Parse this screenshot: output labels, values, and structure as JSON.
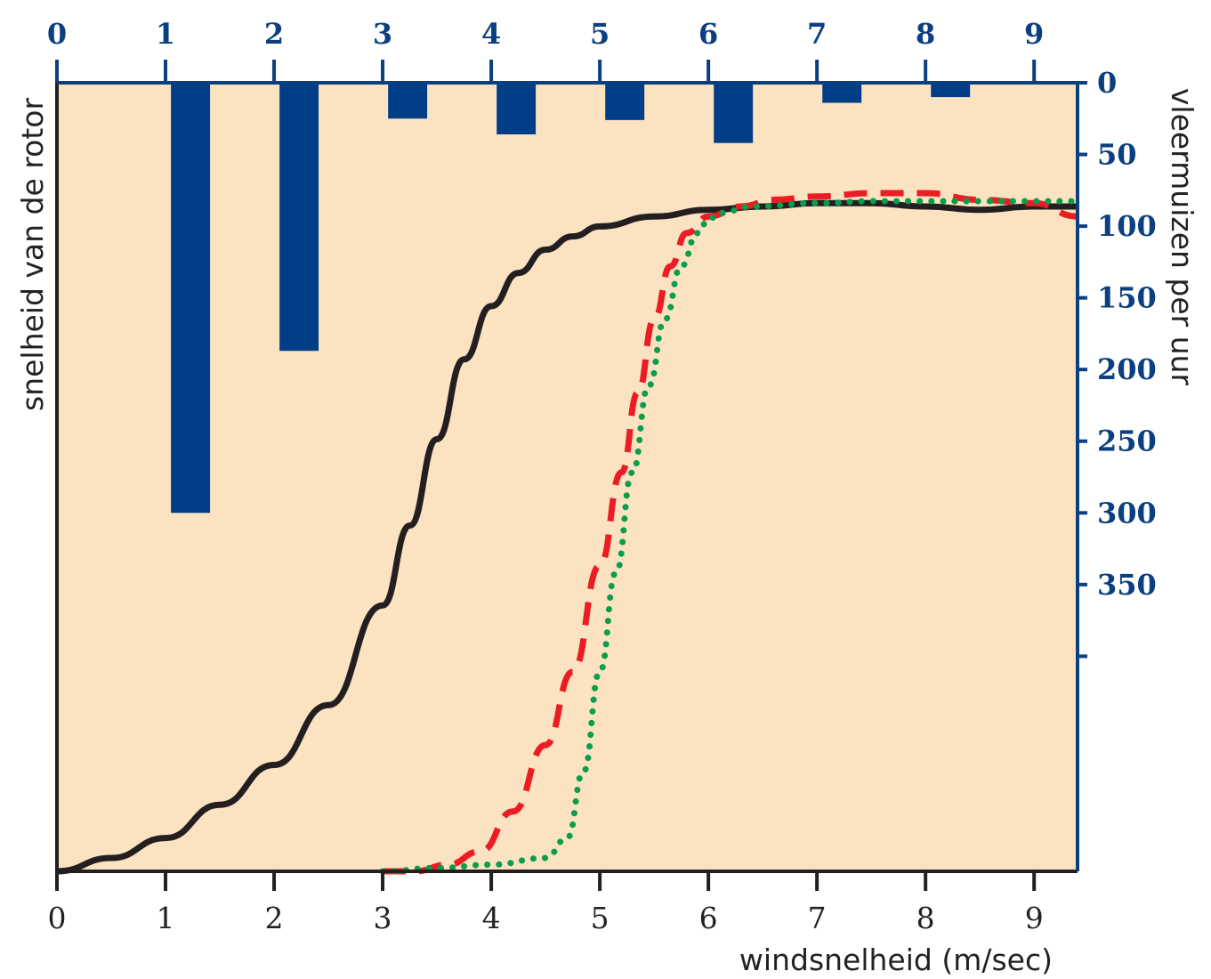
{
  "chart_data": {
    "type": "bar+line",
    "title": "",
    "xlabel": "windsnelheid (m/sec)",
    "ylabel_left": "snelheid van de rotor",
    "ylabel_right": "vleermuizen per uur",
    "x_ticks": [
      0,
      1,
      2,
      3,
      4,
      5,
      6,
      7,
      8,
      9
    ],
    "top_ticks": [
      0,
      1,
      2,
      3,
      4,
      5,
      6,
      7,
      8,
      9
    ],
    "right_ticks": [
      0,
      50,
      100,
      150,
      200,
      250,
      300,
      350
    ],
    "xlim": [
      0,
      9.4
    ],
    "right_ylim": [
      0,
      550
    ],
    "right_axis_inverted": true,
    "grid": false,
    "background_color": "#fbe3c2",
    "bars": {
      "color": "#003f88",
      "x_start": [
        1,
        2,
        3,
        4,
        5,
        6,
        7,
        8
      ],
      "x_end": [
        2,
        3,
        4,
        5,
        6,
        7,
        8,
        9
      ],
      "values": [
        300,
        187,
        25,
        36,
        26,
        42,
        14,
        10
      ],
      "axis": "right"
    },
    "series": [
      {
        "style": "solid",
        "color": "#231f20",
        "x": [
          0,
          0.5,
          1,
          1.5,
          2,
          2.5,
          3,
          3.25,
          3.5,
          3.75,
          4,
          4.25,
          4.5,
          4.75,
          5,
          5.5,
          6,
          6.5,
          7,
          7.5,
          8,
          8.5,
          9,
          9.4
        ],
        "y": [
          0.0,
          0.02,
          0.05,
          0.1,
          0.16,
          0.25,
          0.4,
          0.52,
          0.65,
          0.77,
          0.85,
          0.9,
          0.935,
          0.955,
          0.97,
          0.985,
          0.995,
          1.0,
          1.005,
          1.005,
          1.0,
          0.995,
          1.0,
          1.0
        ]
      },
      {
        "style": "dashed",
        "color": "#ec1c24",
        "x": [
          3.0,
          3.3,
          3.6,
          3.9,
          4.2,
          4.5,
          4.75,
          5.0,
          5.2,
          5.35,
          5.5,
          5.65,
          5.8,
          6.0,
          6.3,
          6.6,
          7.0,
          7.5,
          8.0,
          8.5,
          9.0,
          9.4
        ],
        "y": [
          0.0,
          0.0,
          0.01,
          0.03,
          0.09,
          0.19,
          0.3,
          0.46,
          0.6,
          0.72,
          0.83,
          0.91,
          0.96,
          0.985,
          1.0,
          1.01,
          1.015,
          1.02,
          1.02,
          1.01,
          1.005,
          0.985
        ]
      },
      {
        "style": "dotted",
        "color": "#0a9d4b",
        "x": [
          3.0,
          3.5,
          4.0,
          4.5,
          4.7,
          4.85,
          5.0,
          5.15,
          5.3,
          5.45,
          5.6,
          5.75,
          5.9,
          6.0,
          6.1,
          6.4,
          7.0,
          7.5,
          8.0,
          8.5,
          9.0,
          9.4
        ],
        "y": [
          0.0,
          0.005,
          0.01,
          0.02,
          0.05,
          0.15,
          0.3,
          0.45,
          0.6,
          0.73,
          0.83,
          0.91,
          0.96,
          0.98,
          0.99,
          1.0,
          1.005,
          1.008,
          1.008,
          1.008,
          1.008,
          1.008
        ]
      }
    ]
  }
}
